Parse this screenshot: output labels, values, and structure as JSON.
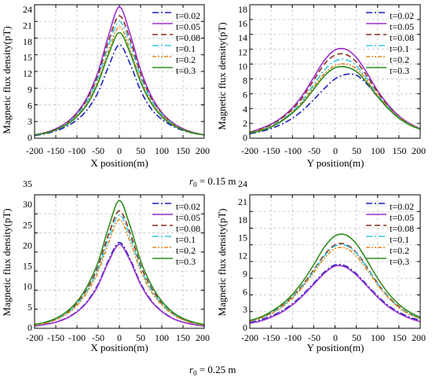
{
  "captions": [
    {
      "prefix": "r",
      "sub": "0",
      "rest": " = 0.15 m"
    },
    {
      "prefix": "r",
      "sub": "0",
      "rest": " = 0.25 m"
    }
  ],
  "series_styles": [
    {
      "name": "t=0.02",
      "color": "#1f1fbf",
      "dash": "8,3,2,3"
    },
    {
      "name": "t=0.05",
      "color": "#9b2fd0",
      "dash": ""
    },
    {
      "name": "t=0.08",
      "color": "#8b2e1a",
      "dash": "7,4"
    },
    {
      "name": "t=0.1",
      "color": "#36c9e6",
      "dash": "8,3,2,3"
    },
    {
      "name": "t=0.2",
      "color": "#e08a1e",
      "dash": "5,2,2,2,2,2"
    },
    {
      "name": "t=0.3",
      "color": "#2e8b1e",
      "dash": ""
    }
  ],
  "chart_data": [
    {
      "type": "line",
      "xlabel": "X position(m)",
      "ylabel": "Magnetic flux density(pT)",
      "xlim": [
        -200,
        200
      ],
      "ylim": [
        0,
        24
      ],
      "xticks": [
        "-200",
        "-150",
        "-100",
        "-50",
        "0",
        "50",
        "100",
        "150",
        "200"
      ],
      "yticks": [
        "0",
        "3",
        "6",
        "9",
        "12",
        "15",
        "18",
        "21",
        "24"
      ],
      "grid": true,
      "legend_position": "top-right",
      "x": [
        -200,
        -175,
        -150,
        -125,
        -100,
        -75,
        -50,
        -25,
        0,
        25,
        50,
        75,
        100,
        125,
        150,
        175,
        200
      ],
      "series": [
        {
          "name": "t=0.02",
          "values": [
            0.5,
            0.8,
            1.3,
            2.1,
            3.3,
            5.2,
            8.3,
            13.0,
            16.8,
            13.4,
            8.6,
            5.3,
            3.4,
            2.2,
            1.4,
            0.9,
            0.6
          ]
        },
        {
          "name": "t=0.05",
          "values": [
            0.6,
            1.0,
            1.7,
            2.8,
            4.6,
            7.5,
            12.0,
            18.6,
            23.6,
            18.8,
            12.3,
            7.6,
            4.6,
            2.8,
            1.7,
            1.0,
            0.6
          ]
        },
        {
          "name": "t=0.08",
          "values": [
            0.6,
            1.0,
            1.6,
            2.7,
            4.4,
            7.1,
            11.4,
            17.6,
            22.0,
            17.8,
            11.6,
            7.2,
            4.5,
            2.7,
            1.6,
            1.0,
            0.6
          ]
        },
        {
          "name": "t=0.1",
          "values": [
            0.6,
            0.9,
            1.5,
            2.6,
            4.2,
            6.8,
            10.9,
            16.8,
            21.0,
            17.0,
            11.1,
            6.9,
            4.3,
            2.6,
            1.5,
            0.9,
            0.6
          ]
        },
        {
          "name": "t=0.2",
          "values": [
            0.6,
            0.9,
            1.5,
            2.5,
            4.0,
            6.4,
            10.3,
            15.8,
            20.0,
            16.0,
            10.5,
            6.5,
            4.1,
            2.5,
            1.5,
            0.9,
            0.6
          ]
        },
        {
          "name": "t=0.3",
          "values": [
            0.6,
            0.9,
            1.5,
            2.4,
            3.9,
            6.2,
            10.0,
            15.2,
            19.0,
            15.4,
            10.1,
            6.3,
            3.9,
            2.4,
            1.5,
            0.9,
            0.6
          ]
        }
      ]
    },
    {
      "type": "line",
      "xlabel": "Y position(m)",
      "ylabel": "Magnetic flux density(pT)",
      "xlim": [
        -200,
        200
      ],
      "ylim": [
        0,
        18
      ],
      "xticks": [
        "-200",
        "-150",
        "-100",
        "-50",
        "0",
        "50",
        "100",
        "150",
        "200"
      ],
      "yticks": [
        "0",
        "2",
        "4",
        "6",
        "8",
        "10",
        "12",
        "14",
        "16",
        "18"
      ],
      "grid": true,
      "legend_position": "top-right",
      "x": [
        -200,
        -175,
        -150,
        -125,
        -100,
        -75,
        -50,
        -25,
        0,
        25,
        50,
        75,
        100,
        125,
        150,
        175,
        200
      ],
      "series": [
        {
          "name": "t=0.02",
          "values": [
            0.6,
            0.9,
            1.3,
            1.9,
            2.7,
            3.8,
            5.2,
            6.7,
            8.0,
            8.6,
            8.5,
            7.3,
            5.6,
            4.0,
            2.8,
            1.9,
            1.3
          ]
        },
        {
          "name": "t=0.05",
          "values": [
            0.8,
            1.3,
            1.9,
            2.8,
            4.1,
            5.9,
            8.2,
            10.5,
            11.9,
            12.0,
            10.9,
            8.8,
            6.4,
            4.5,
            3.0,
            2.0,
            1.3
          ]
        },
        {
          "name": "t=0.08",
          "values": [
            0.8,
            1.2,
            1.8,
            2.7,
            3.9,
            5.6,
            7.8,
            10.0,
            11.2,
            11.3,
            10.3,
            8.4,
            6.2,
            4.3,
            2.9,
            1.9,
            1.3
          ]
        },
        {
          "name": "t=0.1",
          "values": [
            0.7,
            1.1,
            1.7,
            2.5,
            3.6,
            5.2,
            7.2,
            9.2,
            10.4,
            10.6,
            9.8,
            8.0,
            5.9,
            4.2,
            2.8,
            1.9,
            1.3
          ]
        },
        {
          "name": "t=0.2",
          "values": [
            0.7,
            1.1,
            1.6,
            2.4,
            3.5,
            5.0,
            6.9,
            8.7,
            9.8,
            10.0,
            9.4,
            7.8,
            5.8,
            4.1,
            2.8,
            1.9,
            1.3
          ]
        },
        {
          "name": "t=0.3",
          "values": [
            0.7,
            1.0,
            1.5,
            2.3,
            3.4,
            4.8,
            6.6,
            8.4,
            9.5,
            9.6,
            9.0,
            7.5,
            5.6,
            4.0,
            2.7,
            1.8,
            1.2
          ]
        }
      ]
    },
    {
      "type": "line",
      "xlabel": "X position(m)",
      "ylabel": "Magnetic flux density(pT)",
      "xlim": [
        -200,
        200
      ],
      "ylim": [
        0,
        35
      ],
      "xticks": [
        "-200",
        "-150",
        "-100",
        "-50",
        "0",
        "50",
        "100",
        "150",
        "200"
      ],
      "yticks": [
        "0",
        "5",
        "10",
        "15",
        "20",
        "25",
        "30",
        "35"
      ],
      "grid": true,
      "legend_position": "top-right",
      "x": [
        -200,
        -175,
        -150,
        -125,
        -100,
        -75,
        -50,
        -25,
        0,
        25,
        50,
        75,
        100,
        125,
        150,
        175,
        200
      ],
      "series": [
        {
          "name": "t=0.02",
          "values": [
            0.6,
            1.0,
            1.6,
            2.7,
            4.4,
            7.2,
            11.6,
            18.0,
            22.5,
            18.2,
            11.8,
            7.3,
            4.5,
            2.7,
            1.6,
            1.0,
            0.6
          ]
        },
        {
          "name": "t=0.05",
          "values": [
            0.6,
            1.0,
            1.6,
            2.6,
            4.3,
            7.0,
            11.3,
            17.6,
            22.0,
            17.8,
            11.5,
            7.1,
            4.4,
            2.6,
            1.6,
            1.0,
            0.6
          ]
        },
        {
          "name": "t=0.08",
          "values": [
            0.9,
            1.4,
            2.4,
            4.0,
            6.5,
            10.5,
            16.3,
            24.8,
            30.8,
            25.0,
            16.5,
            10.6,
            6.6,
            4.0,
            2.4,
            1.4,
            0.9
          ]
        },
        {
          "name": "t=0.1",
          "values": [
            0.8,
            1.4,
            2.3,
            3.8,
            6.3,
            10.1,
            15.6,
            23.7,
            29.8,
            24.0,
            15.8,
            10.2,
            6.4,
            3.9,
            2.3,
            1.4,
            0.9
          ]
        },
        {
          "name": "t=0.2",
          "values": [
            0.8,
            1.3,
            2.2,
            3.7,
            6.0,
            9.6,
            14.8,
            22.5,
            28.5,
            22.8,
            15.0,
            9.7,
            6.1,
            3.7,
            2.2,
            1.3,
            0.8
          ]
        },
        {
          "name": "t=0.3",
          "values": [
            1.0,
            1.6,
            2.6,
            4.3,
            7.0,
            11.2,
            17.4,
            26.6,
            33.5,
            26.9,
            17.7,
            11.4,
            7.1,
            4.3,
            2.6,
            1.6,
            1.0
          ]
        }
      ]
    },
    {
      "type": "line",
      "xlabel": "Y position(m)",
      "ylabel": "Magnetic flux density(pT)",
      "xlim": [
        -200,
        200
      ],
      "ylim": [
        0,
        24
      ],
      "xticks": [
        "-200",
        "-150",
        "-100",
        "-50",
        "0",
        "50",
        "100",
        "150",
        "200"
      ],
      "yticks": [
        "0",
        "3",
        "6",
        "9",
        "12",
        "15",
        "18",
        "21",
        "24"
      ],
      "grid": true,
      "legend_position": "top-right",
      "x": [
        -200,
        -175,
        -150,
        -125,
        -100,
        -75,
        -50,
        -25,
        0,
        25,
        50,
        75,
        100,
        125,
        150,
        175,
        200
      ],
      "series": [
        {
          "name": "t=0.02",
          "values": [
            1.0,
            1.5,
            2.2,
            3.1,
            4.4,
            6.1,
            8.1,
            10.1,
            11.4,
            11.2,
            9.8,
            7.8,
            5.8,
            4.1,
            2.9,
            2.0,
            1.4
          ]
        },
        {
          "name": "t=0.05",
          "values": [
            0.9,
            1.3,
            2.0,
            2.9,
            4.2,
            5.9,
            7.9,
            9.9,
            11.2,
            11.0,
            9.6,
            7.6,
            5.6,
            3.9,
            2.7,
            1.8,
            1.2
          ]
        },
        {
          "name": "t=0.08",
          "values": [
            1.3,
            1.9,
            2.8,
            4.0,
            5.7,
            7.9,
            10.5,
            13.2,
            15.0,
            15.1,
            13.6,
            11.0,
            8.1,
            5.7,
            3.9,
            2.6,
            1.8
          ]
        },
        {
          "name": "t=0.1",
          "values": [
            1.2,
            1.8,
            2.7,
            3.9,
            5.6,
            7.7,
            10.3,
            13.0,
            14.8,
            14.9,
            13.5,
            10.9,
            8.0,
            5.6,
            3.8,
            2.6,
            1.8
          ]
        },
        {
          "name": "t=0.2",
          "values": [
            1.2,
            1.8,
            2.6,
            3.8,
            5.4,
            7.5,
            10.0,
            12.6,
            14.3,
            14.4,
            13.0,
            10.5,
            7.8,
            5.5,
            3.7,
            2.5,
            1.7
          ]
        },
        {
          "name": "t=0.3",
          "values": [
            1.4,
            2.0,
            3.0,
            4.3,
            6.1,
            8.5,
            11.4,
            14.6,
            16.6,
            16.8,
            15.2,
            12.2,
            9.0,
            6.3,
            4.3,
            2.9,
            2.0
          ]
        }
      ]
    }
  ]
}
